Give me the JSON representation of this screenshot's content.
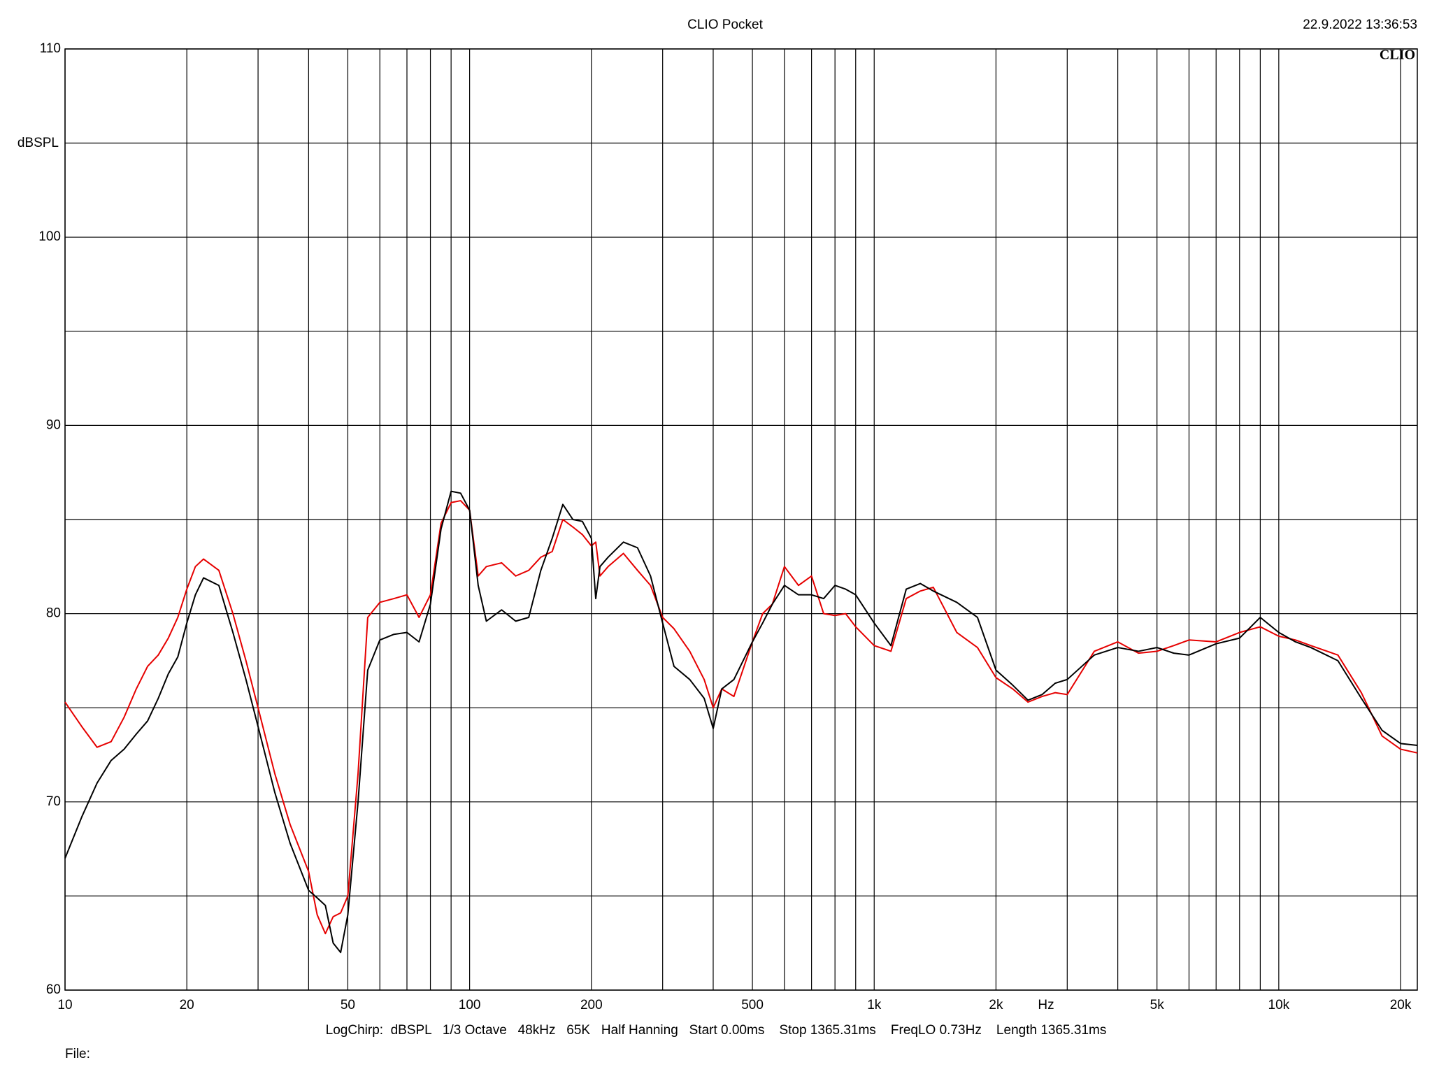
{
  "chart_data": {
    "type": "line",
    "title": "CLIO Pocket",
    "timestamp": "22.9.2022 13:36:53",
    "logo": "CLIO",
    "y_label": "dBSPL",
    "x_label": "Hz",
    "footer": "LogChirp:  dBSPL   1/3 Octave   48kHz   65K   Half Hanning   Start 0.00ms    Stop 1365.31ms    FreqLO 0.73Hz    Length 1365.31ms",
    "file_label": "File:",
    "xscale": "log",
    "xlim": [
      10,
      22000
    ],
    "ylim": [
      60,
      110
    ],
    "grid": true,
    "xticks": [
      10,
      20,
      50,
      100,
      200,
      500,
      {
        "value": 1000,
        "label": "1k"
      },
      {
        "value": 2000,
        "label": "2k"
      },
      {
        "value": 5000,
        "label": "5k"
      },
      {
        "value": 10000,
        "label": "10k"
      },
      {
        "value": 20000,
        "label": "20k"
      }
    ],
    "xminor": [
      30,
      40,
      60,
      70,
      80,
      90,
      300,
      400,
      600,
      700,
      800,
      900,
      3000,
      4000,
      6000,
      7000,
      8000,
      9000
    ],
    "yticks": [
      60,
      70,
      80,
      90,
      100,
      110
    ],
    "yminor": [
      65,
      75,
      85,
      95,
      105
    ],
    "x": [
      10,
      11,
      12,
      13,
      14,
      15,
      16,
      17,
      18,
      19,
      20,
      21,
      22,
      24,
      26,
      28,
      30,
      33,
      36,
      40,
      42,
      44,
      46,
      48,
      50,
      53,
      56,
      60,
      65,
      70,
      75,
      80,
      85,
      90,
      95,
      100,
      105,
      110,
      120,
      130,
      140,
      150,
      160,
      170,
      180,
      190,
      200,
      205,
      210,
      220,
      240,
      260,
      280,
      300,
      320,
      350,
      380,
      400,
      420,
      450,
      500,
      530,
      560,
      600,
      650,
      700,
      750,
      800,
      850,
      900,
      1000,
      1100,
      1200,
      1300,
      1400,
      1600,
      1800,
      2000,
      2200,
      2400,
      2600,
      2800,
      3000,
      3500,
      4000,
      4500,
      5000,
      5500,
      6000,
      7000,
      8000,
      9000,
      10000,
      11000,
      12000,
      14000,
      16000,
      18000,
      20000,
      22000
    ],
    "series": [
      {
        "color": "#000000",
        "values": [
          67.0,
          69.2,
          71.0,
          72.2,
          72.8,
          73.6,
          74.3,
          75.5,
          76.8,
          77.7,
          79.5,
          81.0,
          81.9,
          81.5,
          79.0,
          76.5,
          74.0,
          70.5,
          67.8,
          65.3,
          64.9,
          64.5,
          62.5,
          62.0,
          64.0,
          70.0,
          77.0,
          78.6,
          78.9,
          79.0,
          78.5,
          80.5,
          84.5,
          86.5,
          86.4,
          85.5,
          81.5,
          79.6,
          80.2,
          79.6,
          79.8,
          82.3,
          84.0,
          85.8,
          85.0,
          84.9,
          84.0,
          80.8,
          82.5,
          83.0,
          83.8,
          83.5,
          82.0,
          79.5,
          77.2,
          76.5,
          75.5,
          73.9,
          76.0,
          76.5,
          78.5,
          79.5,
          80.5,
          81.5,
          81.0,
          81.0,
          80.8,
          81.5,
          81.3,
          81.0,
          79.5,
          78.3,
          81.3,
          81.6,
          81.2,
          80.6,
          79.8,
          77.0,
          76.2,
          75.4,
          75.7,
          76.3,
          76.5,
          77.8,
          78.2,
          78.0,
          78.2,
          77.9,
          77.8,
          78.4,
          78.7,
          79.8,
          79.0,
          78.5,
          78.2,
          77.5,
          75.5,
          73.8,
          73.1,
          73.0
        ]
      },
      {
        "color": "#e60000",
        "values": [
          75.3,
          74.0,
          72.9,
          73.2,
          74.5,
          76.0,
          77.2,
          77.8,
          78.7,
          79.8,
          81.3,
          82.5,
          82.9,
          82.3,
          80.0,
          77.5,
          75.0,
          71.5,
          68.8,
          66.3,
          64.0,
          63.0,
          63.9,
          64.1,
          65.0,
          71.5,
          79.8,
          80.6,
          80.8,
          81.0,
          79.8,
          81.0,
          84.8,
          85.9,
          86.0,
          85.5,
          82.0,
          82.5,
          82.7,
          82.0,
          82.3,
          83.0,
          83.3,
          85.0,
          84.6,
          84.2,
          83.6,
          83.8,
          82.0,
          82.5,
          83.2,
          82.3,
          81.5,
          79.8,
          79.2,
          78.0,
          76.5,
          75.0,
          76.0,
          75.6,
          78.5,
          80.0,
          80.5,
          82.5,
          81.5,
          82.0,
          80.0,
          79.9,
          80.0,
          79.3,
          78.3,
          78.0,
          80.8,
          81.2,
          81.4,
          79.0,
          78.2,
          76.6,
          76.0,
          75.3,
          75.6,
          75.8,
          75.7,
          78.0,
          78.5,
          77.9,
          78.0,
          78.3,
          78.6,
          78.5,
          79.0,
          79.3,
          78.8,
          78.6,
          78.3,
          77.8,
          75.8,
          73.5,
          72.8,
          72.6
        ]
      }
    ]
  }
}
